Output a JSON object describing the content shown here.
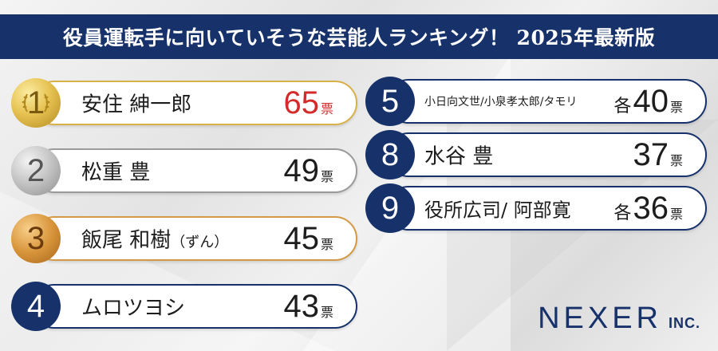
{
  "header": {
    "title": "役員運転手に向いていそうな芸能人ランキング！ 2025年最新版"
  },
  "colors": {
    "navy": "#17326a",
    "highlight": "#d42a2a",
    "gold": "#d8b14a",
    "silver": "#9a9a9a",
    "bronze": "#d39a45"
  },
  "ranking": [
    {
      "rank": "1",
      "name": "安住 紳一郎",
      "name_note": "",
      "prefix": "",
      "votes": "65",
      "unit": "票",
      "medal": "gold"
    },
    {
      "rank": "2",
      "name": "松重 豊",
      "name_note": "",
      "prefix": "",
      "votes": "49",
      "unit": "票",
      "medal": "silver"
    },
    {
      "rank": "3",
      "name": "飯尾 和樹",
      "name_note": "（ずん）",
      "prefix": "",
      "votes": "45",
      "unit": "票",
      "medal": "bronze"
    },
    {
      "rank": "4",
      "name": "ムロツヨシ",
      "name_note": "",
      "prefix": "",
      "votes": "43",
      "unit": "票",
      "medal": "none"
    },
    {
      "rank": "5",
      "name": "小日向文世/小泉孝太郎/タモリ",
      "name_note": "",
      "prefix": "各",
      "votes": "40",
      "unit": "票",
      "medal": "none"
    },
    {
      "rank": "8",
      "name": "水谷 豊",
      "name_note": "",
      "prefix": "",
      "votes": "37",
      "unit": "票",
      "medal": "none"
    },
    {
      "rank": "9",
      "name": "役所広司/ 阿部寛",
      "name_note": "",
      "prefix": "各",
      "votes": "36",
      "unit": "票",
      "medal": "none"
    }
  ],
  "logo": {
    "main": "NEXER",
    "suffix": "INC."
  }
}
